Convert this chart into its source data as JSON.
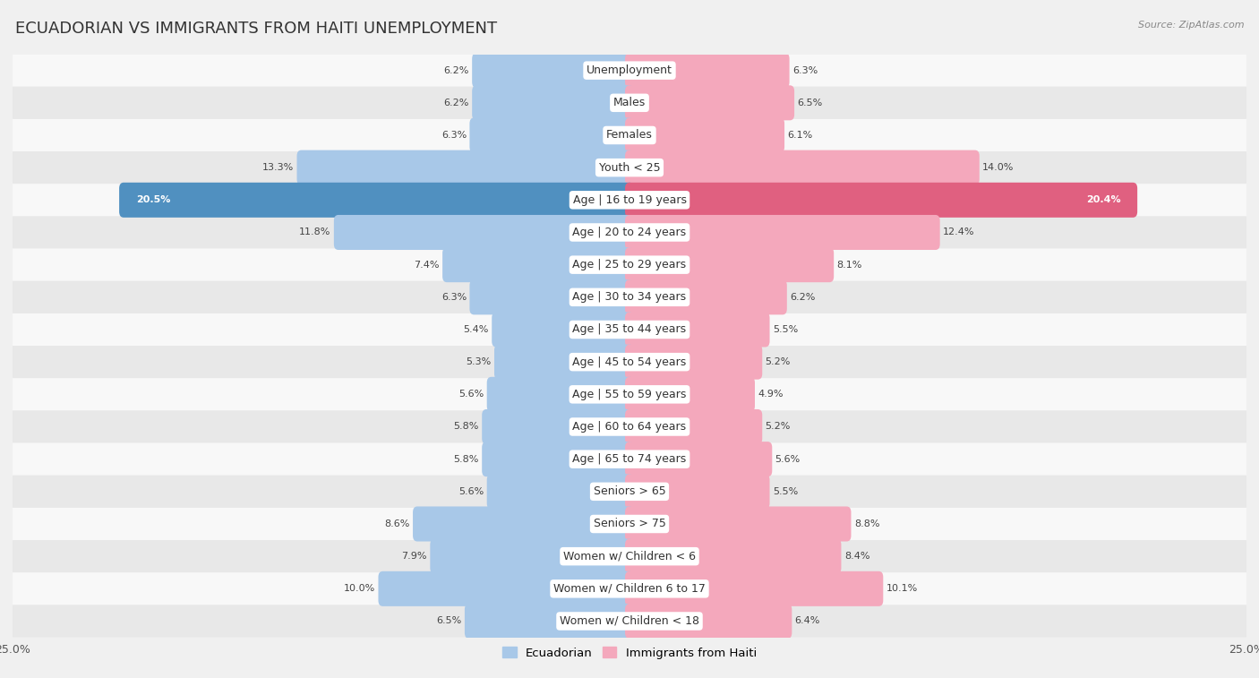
{
  "title": "ECUADORIAN VS IMMIGRANTS FROM HAITI UNEMPLOYMENT",
  "source": "Source: ZipAtlas.com",
  "categories": [
    "Unemployment",
    "Males",
    "Females",
    "Youth < 25",
    "Age | 16 to 19 years",
    "Age | 20 to 24 years",
    "Age | 25 to 29 years",
    "Age | 30 to 34 years",
    "Age | 35 to 44 years",
    "Age | 45 to 54 years",
    "Age | 55 to 59 years",
    "Age | 60 to 64 years",
    "Age | 65 to 74 years",
    "Seniors > 65",
    "Seniors > 75",
    "Women w/ Children < 6",
    "Women w/ Children 6 to 17",
    "Women w/ Children < 18"
  ],
  "ecuadorian": [
    6.2,
    6.2,
    6.3,
    13.3,
    20.5,
    11.8,
    7.4,
    6.3,
    5.4,
    5.3,
    5.6,
    5.8,
    5.8,
    5.6,
    8.6,
    7.9,
    10.0,
    6.5
  ],
  "haiti": [
    6.3,
    6.5,
    6.1,
    14.0,
    20.4,
    12.4,
    8.1,
    6.2,
    5.5,
    5.2,
    4.9,
    5.2,
    5.6,
    5.5,
    8.8,
    8.4,
    10.1,
    6.4
  ],
  "ecuadorian_color": "#a8c8e8",
  "haiti_color": "#f4a8bc",
  "ecuadorian_highlight_color": "#5090c0",
  "haiti_highlight_color": "#e06080",
  "highlight_row": 4,
  "xlim": 25.0,
  "bg_color": "#f0f0f0",
  "row_bg_even": "#f8f8f8",
  "row_bg_odd": "#e8e8e8",
  "legend_label_1": "Ecuadorian",
  "legend_label_2": "Immigrants from Haiti",
  "title_fontsize": 13,
  "label_fontsize": 9,
  "value_fontsize": 8,
  "axis_label_fontsize": 9
}
